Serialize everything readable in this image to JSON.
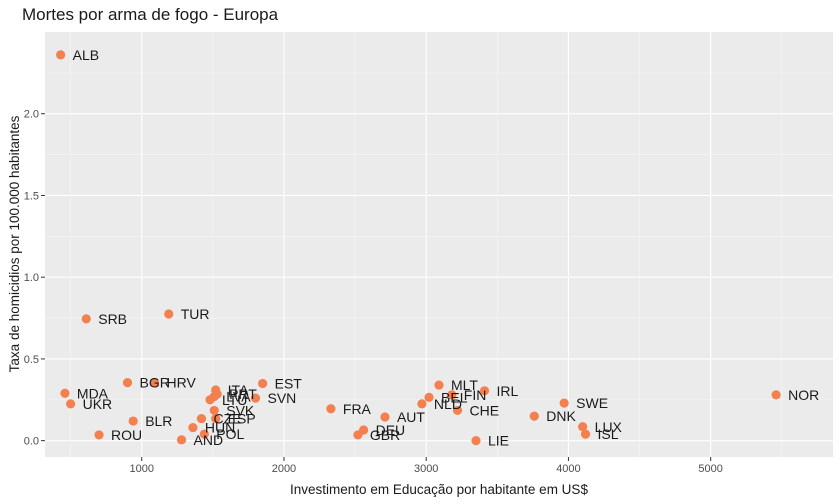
{
  "chart_data": {
    "type": "scatter",
    "title": "Mortes por arma de fogo - Europa",
    "xlabel": "Investimento em Educação por habitante em US$",
    "ylabel": "Taxa de homicidios por 100.000 habitantes",
    "xlim": [
      320,
      5860
    ],
    "ylim": [
      -0.1,
      2.5
    ],
    "xticks": [
      1000,
      2000,
      3000,
      4000,
      5000
    ],
    "xtick_labels": [
      "1000",
      "2000",
      "3000",
      "4000",
      "5000"
    ],
    "yticks": [
      0.0,
      0.5,
      1.0,
      1.5,
      2.0
    ],
    "ytick_labels": [
      "0.0",
      "0.5",
      "1.0",
      "1.5",
      "2.0"
    ],
    "grid": true,
    "point_color": "#f47f4f",
    "points": [
      {
        "label": "ALB",
        "x": 430,
        "y": 2.36
      },
      {
        "label": "SRB",
        "x": 610,
        "y": 0.745
      },
      {
        "label": "TUR",
        "x": 1190,
        "y": 0.775
      },
      {
        "label": "MDA",
        "x": 460,
        "y": 0.29
      },
      {
        "label": "UKR",
        "x": 500,
        "y": 0.225
      },
      {
        "label": "ROU",
        "x": 700,
        "y": 0.035
      },
      {
        "label": "BGR",
        "x": 900,
        "y": 0.355
      },
      {
        "label": "HRV",
        "x": 1090,
        "y": 0.355
      },
      {
        "label": "BLR",
        "x": 940,
        "y": 0.12
      },
      {
        "label": "HUN",
        "x": 1360,
        "y": 0.08
      },
      {
        "label": "AND",
        "x": 1280,
        "y": 0.005
      },
      {
        "label": "POL",
        "x": 1440,
        "y": 0.04
      },
      {
        "label": "CZE",
        "x": 1420,
        "y": 0.135
      },
      {
        "label": "ESP",
        "x": 1520,
        "y": 0.135
      },
      {
        "label": "SVK",
        "x": 1510,
        "y": 0.185
      },
      {
        "label": "LTU",
        "x": 1480,
        "y": 0.25
      },
      {
        "label": "LVA",
        "x": 1510,
        "y": 0.27
      },
      {
        "label": "PRT",
        "x": 1530,
        "y": 0.285
      },
      {
        "label": "ITA",
        "x": 1520,
        "y": 0.31
      },
      {
        "label": "SVN",
        "x": 1800,
        "y": 0.26
      },
      {
        "label": "EST",
        "x": 1850,
        "y": 0.35
      },
      {
        "label": "FRA",
        "x": 2330,
        "y": 0.195
      },
      {
        "label": "DEU",
        "x": 2560,
        "y": 0.065
      },
      {
        "label": "GBR",
        "x": 2520,
        "y": 0.035
      },
      {
        "label": "AUT",
        "x": 2710,
        "y": 0.145
      },
      {
        "label": "NLD",
        "x": 2970,
        "y": 0.225
      },
      {
        "label": "BEL",
        "x": 3020,
        "y": 0.265
      },
      {
        "label": "FIN",
        "x": 3180,
        "y": 0.28
      },
      {
        "label": "MLT",
        "x": 3090,
        "y": 0.34
      },
      {
        "label": "CHE",
        "x": 3220,
        "y": 0.185
      },
      {
        "label": "IRL",
        "x": 3410,
        "y": 0.305
      },
      {
        "label": "LIE",
        "x": 3350,
        "y": 0.0
      },
      {
        "label": "DNK",
        "x": 3760,
        "y": 0.15
      },
      {
        "label": "SWE",
        "x": 3970,
        "y": 0.23
      },
      {
        "label": "LUX",
        "x": 4100,
        "y": 0.085
      },
      {
        "label": "ISL",
        "x": 4120,
        "y": 0.04
      },
      {
        "label": "NOR",
        "x": 5460,
        "y": 0.28
      }
    ]
  }
}
